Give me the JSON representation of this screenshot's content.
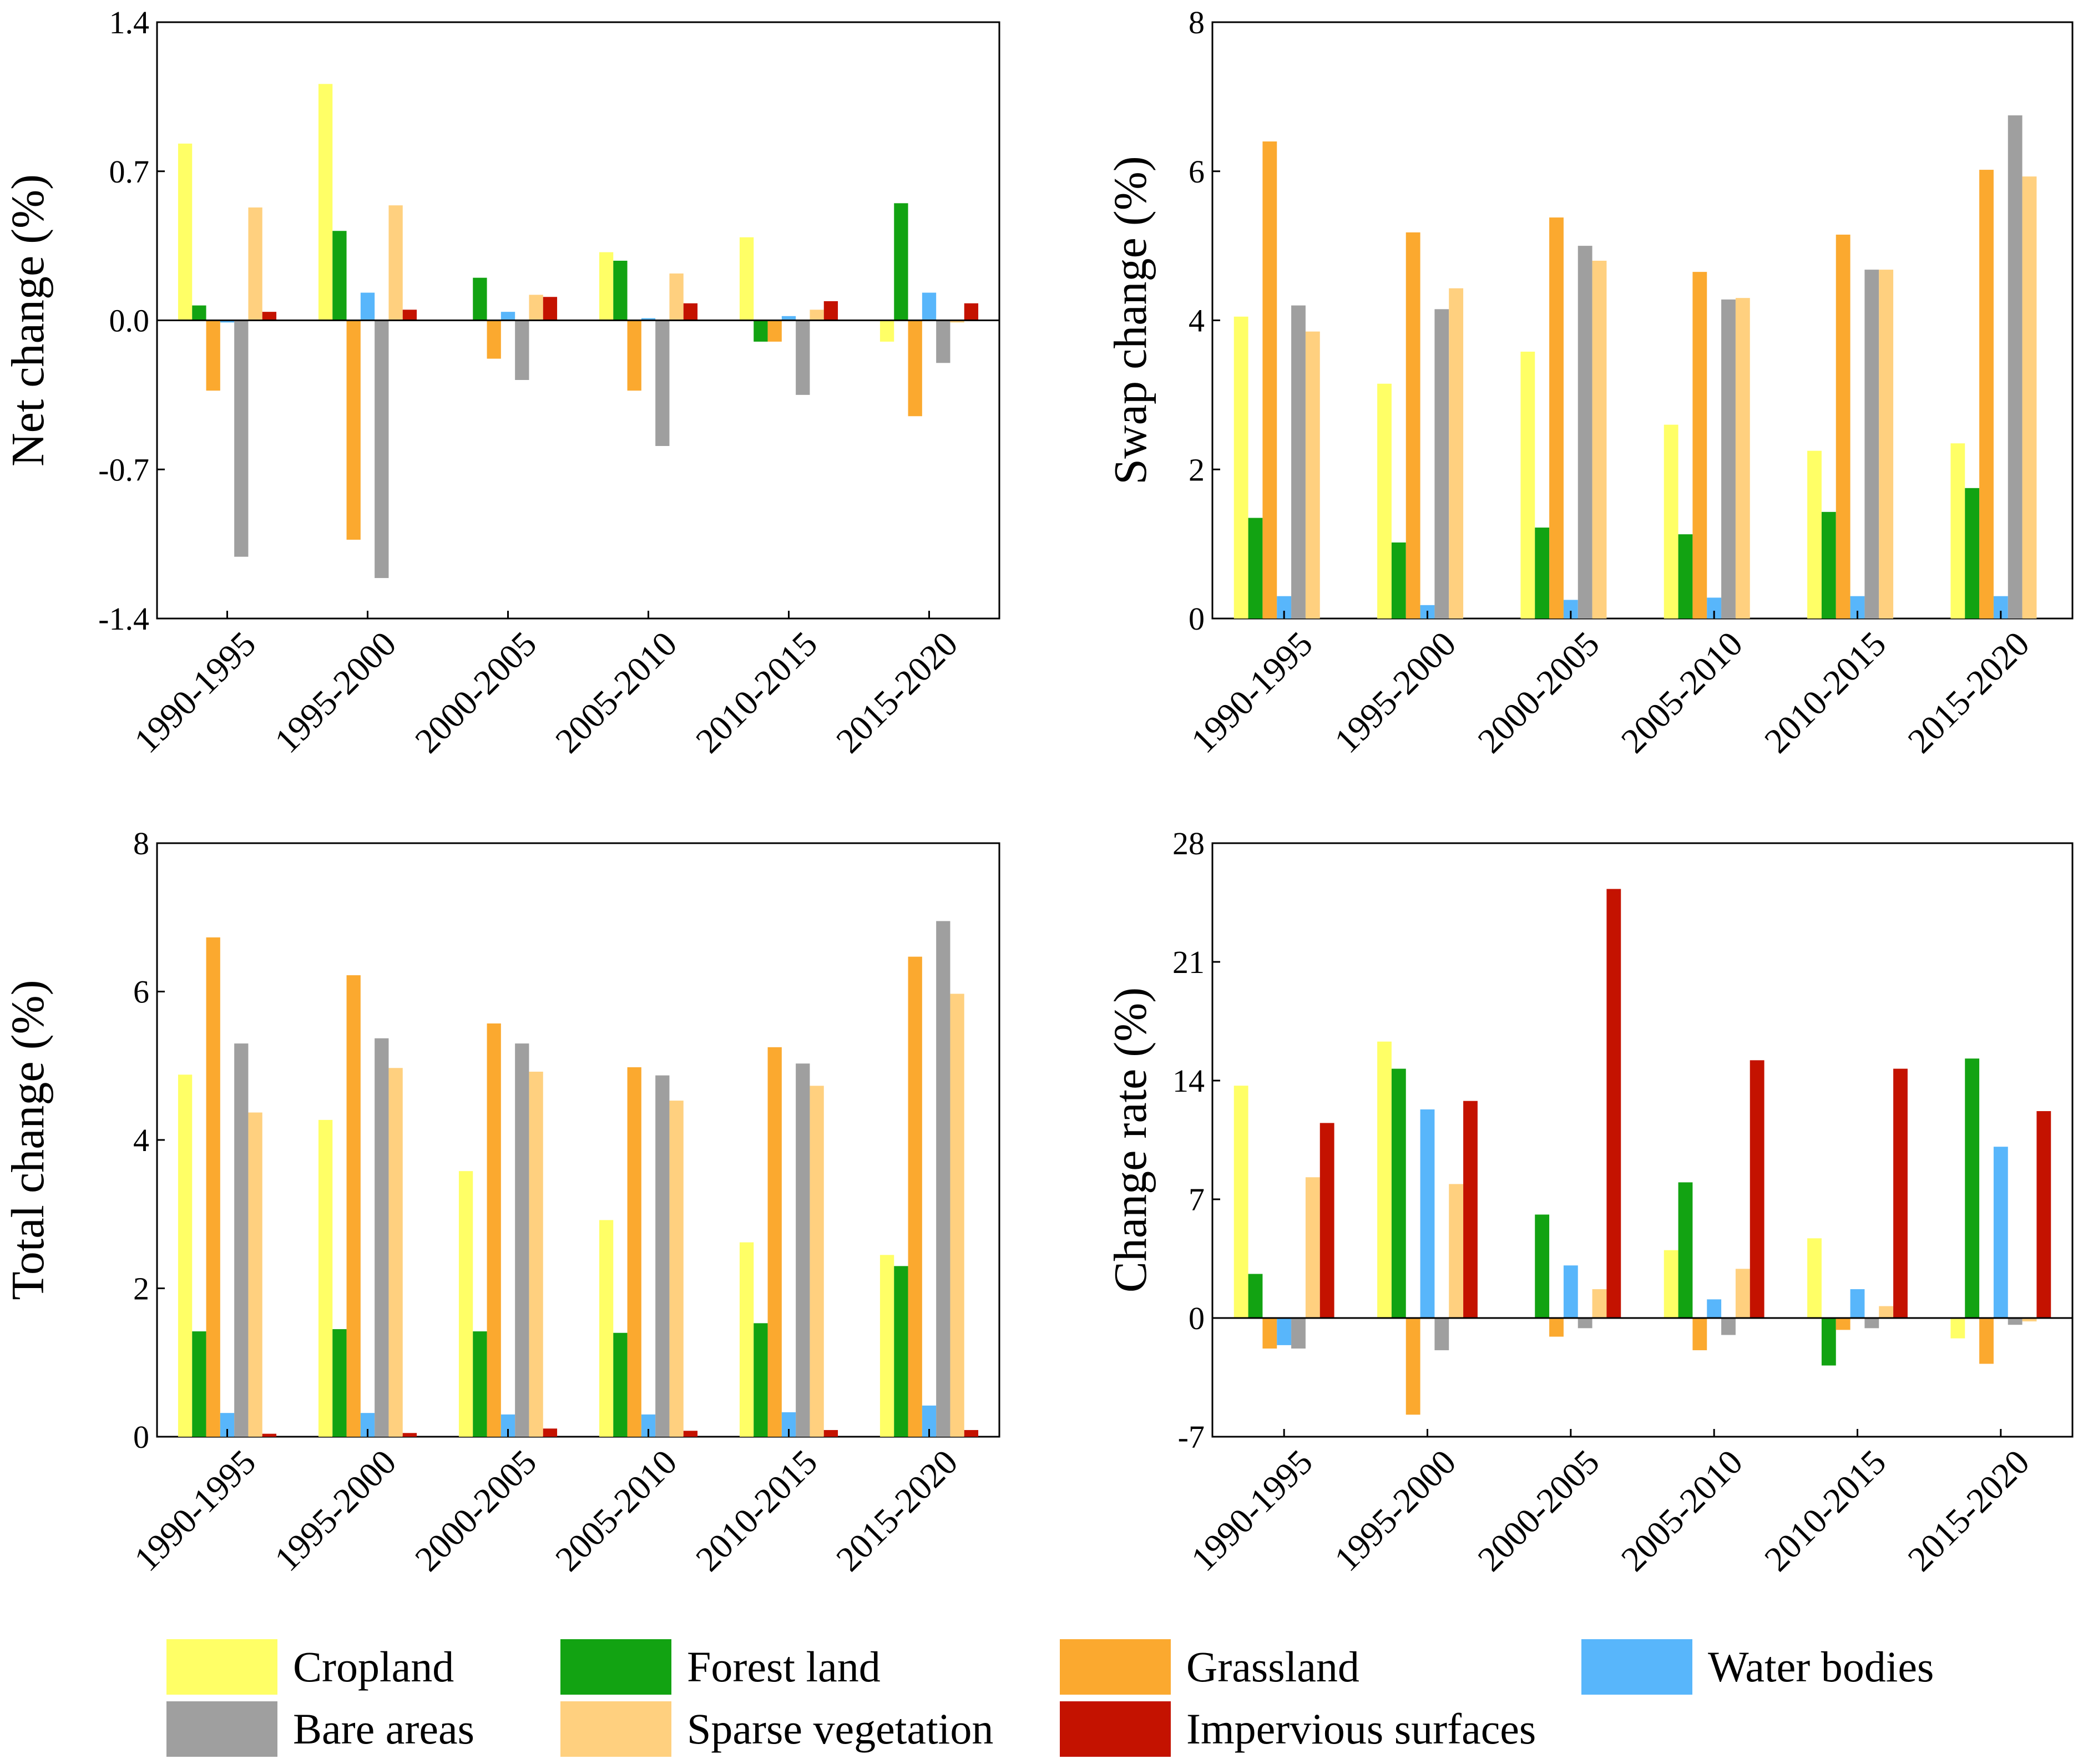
{
  "colors": {
    "Cropland": "#ffff66",
    "Forest land": "#12a312",
    "Grassland": "#fba92f",
    "Water bodies": "#58b6fb",
    "Bare areas": "#9f9f9f",
    "Sparse vegetation": "#ffd07f",
    "Impervious surfaces": "#c41200"
  },
  "legend": [
    {
      "key": "Cropland",
      "label": "Cropland"
    },
    {
      "key": "Forest land",
      "label": "Forest land"
    },
    {
      "key": "Grassland",
      "label": "Grassland"
    },
    {
      "key": "Water bodies",
      "label": "Water bodies"
    },
    {
      "key": "Bare areas",
      "label": "Bare areas"
    },
    {
      "key": "Sparse vegetation",
      "label": "Sparse vegetation"
    },
    {
      "key": "Impervious surfaces",
      "label": "Impervious surfaces"
    }
  ],
  "chart_data": [
    {
      "id": "net",
      "type": "bar",
      "ylabel": "Net change (%)",
      "ylim": [
        -1.4,
        1.4
      ],
      "yticks": [
        "1.4",
        "0.7",
        "0.0",
        "-0.7",
        "-1.4"
      ],
      "ytick_values": [
        1.4,
        0.7,
        0.0,
        -0.7,
        -1.4
      ],
      "categories": [
        "1990-1995",
        "1995-2000",
        "2000-2005",
        "2005-2010",
        "2010-2015",
        "2015-2020"
      ],
      "series": [
        {
          "name": "Cropland",
          "values": [
            0.83,
            1.11,
            0.0,
            0.32,
            0.39,
            -0.1
          ]
        },
        {
          "name": "Forest land",
          "values": [
            0.07,
            0.42,
            0.2,
            0.28,
            -0.1,
            0.55
          ]
        },
        {
          "name": "Grassland",
          "values": [
            -0.33,
            -1.03,
            -0.18,
            -0.33,
            -0.1,
            -0.45
          ]
        },
        {
          "name": "Water bodies",
          "values": [
            -0.01,
            0.13,
            0.04,
            0.01,
            0.02,
            0.13
          ]
        },
        {
          "name": "Bare areas",
          "values": [
            -1.11,
            -1.21,
            -0.28,
            -0.59,
            -0.35,
            -0.2
          ]
        },
        {
          "name": "Sparse vegetation",
          "values": [
            0.53,
            0.54,
            0.12,
            0.22,
            0.05,
            -0.01
          ]
        },
        {
          "name": "Impervious surfaces",
          "values": [
            0.04,
            0.05,
            0.11,
            0.08,
            0.09,
            0.08
          ]
        }
      ]
    },
    {
      "id": "swap",
      "type": "bar",
      "ylabel": "Swap change (%)",
      "ylim": [
        0,
        8
      ],
      "yticks": [
        "8",
        "6",
        "4",
        "2",
        "0"
      ],
      "ytick_values": [
        8,
        6,
        4,
        2,
        0
      ],
      "categories": [
        "1990-1995",
        "1995-2000",
        "2000-2005",
        "2005-2010",
        "2010-2015",
        "2015-2020"
      ],
      "series": [
        {
          "name": "Cropland",
          "values": [
            4.05,
            3.15,
            3.58,
            2.6,
            2.25,
            2.35
          ]
        },
        {
          "name": "Forest land",
          "values": [
            1.35,
            1.02,
            1.22,
            1.13,
            1.43,
            1.75
          ]
        },
        {
          "name": "Grassland",
          "values": [
            6.4,
            5.18,
            5.38,
            4.65,
            5.15,
            6.02
          ]
        },
        {
          "name": "Water bodies",
          "values": [
            0.3,
            0.18,
            0.25,
            0.28,
            0.3,
            0.3
          ]
        },
        {
          "name": "Bare areas",
          "values": [
            4.2,
            4.15,
            5.0,
            4.28,
            4.68,
            6.75
          ]
        },
        {
          "name": "Sparse vegetation",
          "values": [
            3.85,
            4.43,
            4.8,
            4.3,
            4.68,
            5.93
          ]
        },
        {
          "name": "Impervious surfaces",
          "values": [
            0,
            0,
            0,
            0,
            0,
            0
          ]
        }
      ]
    },
    {
      "id": "total",
      "type": "bar",
      "ylabel": "Total change (%)",
      "ylim": [
        0,
        8
      ],
      "yticks": [
        "8",
        "6",
        "4",
        "2",
        "0"
      ],
      "ytick_values": [
        8,
        6,
        4,
        2,
        0
      ],
      "categories": [
        "1990-1995",
        "1995-2000",
        "2000-2005",
        "2005-2010",
        "2010-2015",
        "2015-2020"
      ],
      "series": [
        {
          "name": "Cropland",
          "values": [
            4.88,
            4.27,
            3.58,
            2.92,
            2.62,
            2.45
          ]
        },
        {
          "name": "Forest land",
          "values": [
            1.42,
            1.45,
            1.42,
            1.4,
            1.53,
            2.3
          ]
        },
        {
          "name": "Grassland",
          "values": [
            6.73,
            6.22,
            5.57,
            4.98,
            5.25,
            6.47
          ]
        },
        {
          "name": "Water bodies",
          "values": [
            0.32,
            0.32,
            0.3,
            0.3,
            0.33,
            0.42
          ]
        },
        {
          "name": "Bare areas",
          "values": [
            5.3,
            5.37,
            5.3,
            4.87,
            5.03,
            6.95
          ]
        },
        {
          "name": "Sparse vegetation",
          "values": [
            4.37,
            4.97,
            4.92,
            4.53,
            4.73,
            5.97
          ]
        },
        {
          "name": "Impervious surfaces",
          "values": [
            0.04,
            0.05,
            0.11,
            0.08,
            0.09,
            0.09
          ]
        }
      ]
    },
    {
      "id": "rate",
      "type": "bar",
      "ylabel": "Change rate (%)",
      "ylim": [
        -7,
        28
      ],
      "yticks": [
        "28",
        "21",
        "14",
        "7",
        "0",
        "-7"
      ],
      "ytick_values": [
        28,
        21,
        14,
        7,
        0,
        -7
      ],
      "categories": [
        "1990-1995",
        "1995-2000",
        "2000-2005",
        "2005-2010",
        "2010-2015",
        "2015-2020"
      ],
      "series": [
        {
          "name": "Cropland",
          "values": [
            13.7,
            16.3,
            0.0,
            4.0,
            4.7,
            -1.2
          ]
        },
        {
          "name": "Forest land",
          "values": [
            2.6,
            14.7,
            6.1,
            8.0,
            -2.8,
            15.3
          ]
        },
        {
          "name": "Grassland",
          "values": [
            -1.8,
            -5.7,
            -1.1,
            -1.9,
            -0.7,
            -2.7
          ]
        },
        {
          "name": "Water bodies",
          "values": [
            -1.6,
            12.3,
            3.1,
            1.1,
            1.7,
            10.1
          ]
        },
        {
          "name": "Bare areas",
          "values": [
            -1.8,
            -1.9,
            -0.6,
            -1.0,
            -0.6,
            -0.4
          ]
        },
        {
          "name": "Sparse vegetation",
          "values": [
            8.3,
            7.9,
            1.7,
            2.9,
            0.7,
            -0.2
          ]
        },
        {
          "name": "Impervious surfaces",
          "values": [
            11.5,
            12.8,
            25.3,
            15.2,
            14.7,
            12.2
          ]
        }
      ]
    }
  ]
}
